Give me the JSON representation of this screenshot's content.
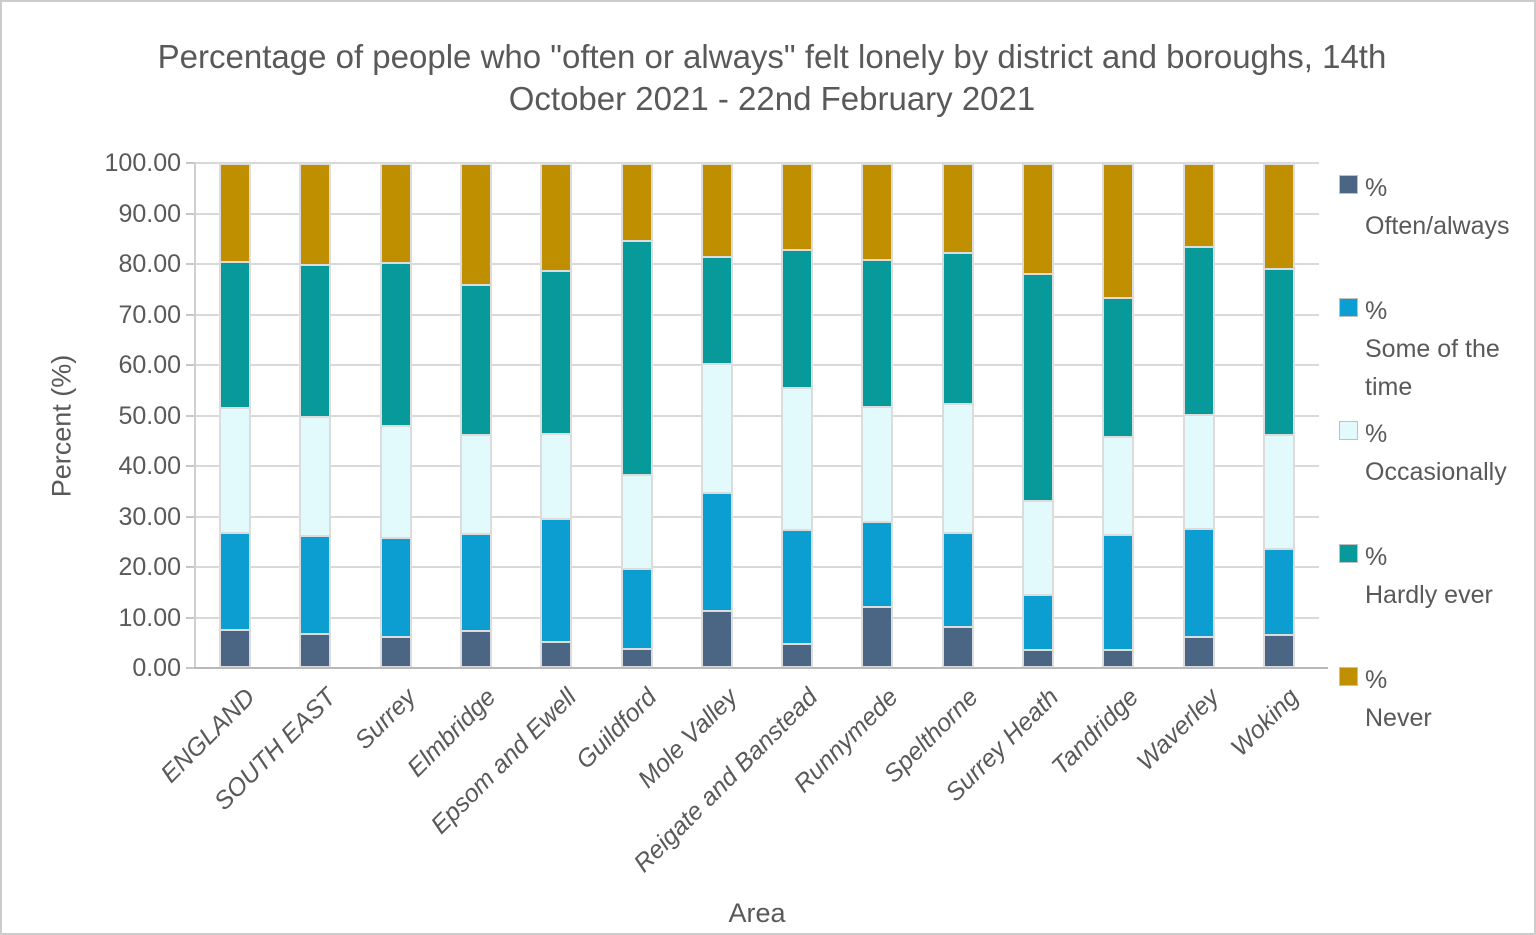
{
  "chart_data": {
    "type": "bar",
    "stacked": true,
    "title": "Percentage of people who \"often or always\" felt lonely by district and boroughs, 14th October 2021 - 22nd February 2021",
    "xlabel": "Area",
    "ylabel": "Percent (%)",
    "ylim": [
      0,
      100
    ],
    "ytick_step": 10,
    "ytick_decimals": 2,
    "grid": true,
    "legend_position": "right",
    "categories": [
      "ENGLAND",
      "SOUTH EAST",
      "Surrey",
      "Elmbridge",
      "Epsom and Ewell",
      "Guildford",
      "Mole Valley",
      "Reigate and Banstead",
      "Runnymede",
      "Spelthorne",
      "Surrey Heath",
      "Tandridge",
      "Waverley",
      "Woking"
    ],
    "series": [
      {
        "name": "% Often/always",
        "color": "#4B6584",
        "values": [
          7.3,
          6.6,
          6.0,
          7.2,
          5.0,
          3.6,
          11.0,
          4.6,
          11.9,
          8.0,
          3.4,
          3.3,
          5.9,
          6.4
        ]
      },
      {
        "name": "% Some of the time",
        "color": "#0C9DD1",
        "values": [
          19.2,
          19.4,
          19.5,
          19.2,
          24.4,
          15.8,
          23.5,
          22.6,
          16.9,
          18.6,
          10.8,
          22.9,
          21.5,
          16.9
        ]
      },
      {
        "name": "% Occasionally",
        "color": "#E2FAFB",
        "values": [
          24.7,
          23.6,
          22.3,
          19.5,
          16.8,
          18.7,
          25.5,
          28.0,
          22.7,
          25.4,
          18.6,
          19.4,
          22.5,
          22.7
        ]
      },
      {
        "name": "% Hardly ever",
        "color": "#089A9B",
        "values": [
          28.9,
          30.0,
          32.2,
          29.8,
          32.2,
          46.2,
          21.1,
          27.3,
          29.1,
          29.9,
          45.0,
          27.4,
          33.2,
          32.8
        ]
      },
      {
        "name": "% Never",
        "color": "#BF8F00",
        "values": [
          19.9,
          20.4,
          20.0,
          24.3,
          21.6,
          15.7,
          18.9,
          17.5,
          19.4,
          18.1,
          22.2,
          27.0,
          16.9,
          21.2
        ]
      }
    ]
  }
}
